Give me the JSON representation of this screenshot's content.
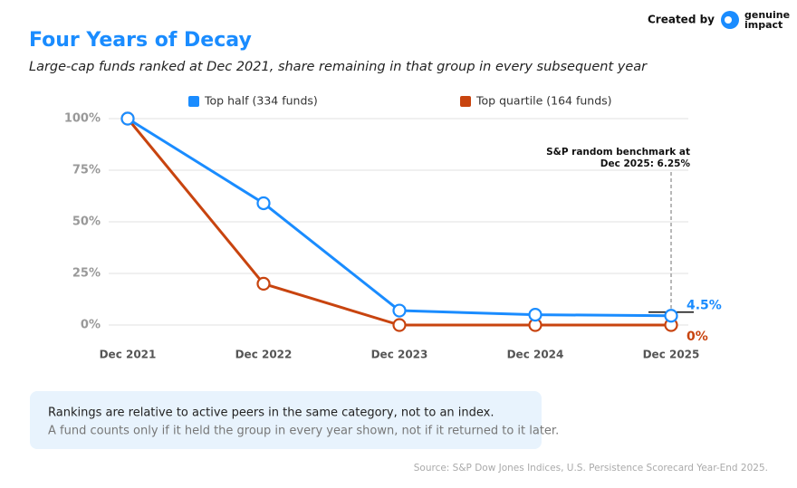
{
  "header": {
    "created_by": "Created by",
    "brand": [
      "genuine",
      "impact"
    ]
  },
  "chart_data": {
    "type": "line",
    "title": "Four Years of Decay",
    "subtitle": "Large-cap funds ranked at Dec 2021, share remaining in that group in every subsequent year",
    "categories": [
      "Dec 2021",
      "Dec 2022",
      "Dec 2023",
      "Dec 2024",
      "Dec 2025"
    ],
    "series": [
      {
        "name": "Top half (334 funds)",
        "color": "#1a8cff",
        "values": [
          100,
          59,
          7,
          5,
          4.5
        ],
        "value_labels": [
          null,
          null,
          null,
          null,
          "4.5%"
        ]
      },
      {
        "name": "Top quartile (164 funds)",
        "color": "#c8440f",
        "values": [
          100,
          20,
          0,
          0,
          0
        ],
        "value_labels": [
          null,
          null,
          null,
          null,
          "0%"
        ]
      }
    ],
    "ylim": [
      0,
      100
    ],
    "yticks": [
      {
        "value": 0,
        "label": "0%"
      },
      {
        "value": 25,
        "label": "25%"
      },
      {
        "value": 50,
        "label": "50%"
      },
      {
        "value": 75,
        "label": "75%"
      },
      {
        "value": 100,
        "label": "100%"
      }
    ],
    "grid": true,
    "benchmark": {
      "value": 6.25,
      "label": [
        "S&P random benchmark at",
        "Dec 2025: 6.25%"
      ]
    }
  },
  "note": [
    "Rankings are relative to active peers in the same category, not to an index.",
    "A fund counts only if it held the group in every year shown, not if it returned to it later."
  ],
  "source": "Source: S&P Dow Jones Indices, U.S. Persistence Scorecard Year-End 2025."
}
